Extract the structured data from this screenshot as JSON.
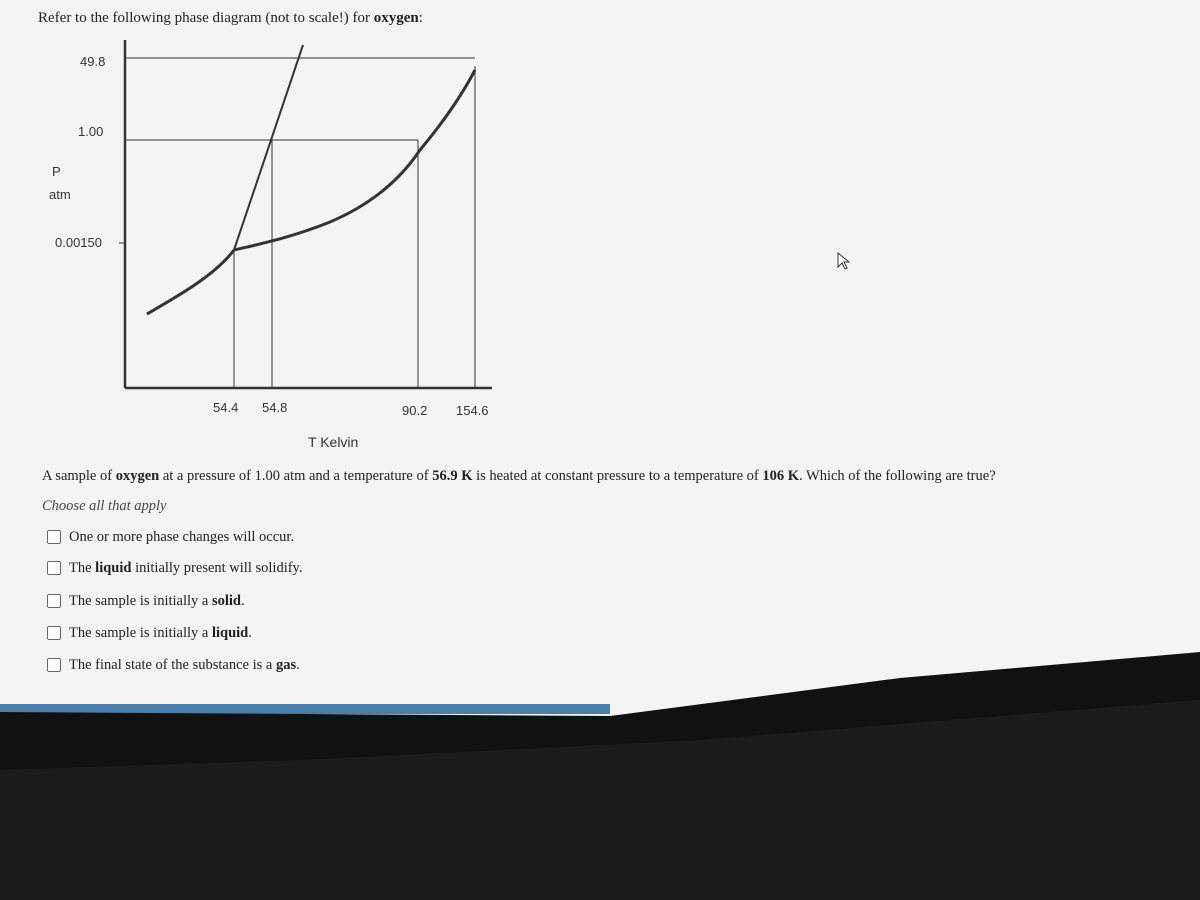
{
  "header": {
    "intro": [
      "Refer to the following phase diagram (not to scale!) for ",
      "oxygen",
      ":"
    ]
  },
  "diagram": {
    "y_labels": [
      "49.8",
      "1.00",
      "0.00150"
    ],
    "y_axis_title": [
      "P",
      "atm"
    ],
    "x_labels": [
      "54.4",
      "54.8",
      "90.2",
      "154.6"
    ],
    "x_axis_title": "T Kelvin"
  },
  "question": [
    "A sample of ",
    "oxygen",
    " at a pressure of 1.00 atm and a temperature of ",
    "56.9 K",
    " is heated at constant pressure to a temperature of ",
    "106 K",
    ". Which of the following are true?"
  ],
  "instruction": "Choose all that apply",
  "options": [
    [
      "One or more phase changes will occur."
    ],
    [
      "The ",
      "liquid",
      " initially present will solidify."
    ],
    [
      "The sample is initially a ",
      "solid",
      "."
    ],
    [
      "The sample is initially a ",
      "liquid",
      "."
    ],
    [
      "The final state of the substance is a ",
      "gas",
      "."
    ]
  ]
}
